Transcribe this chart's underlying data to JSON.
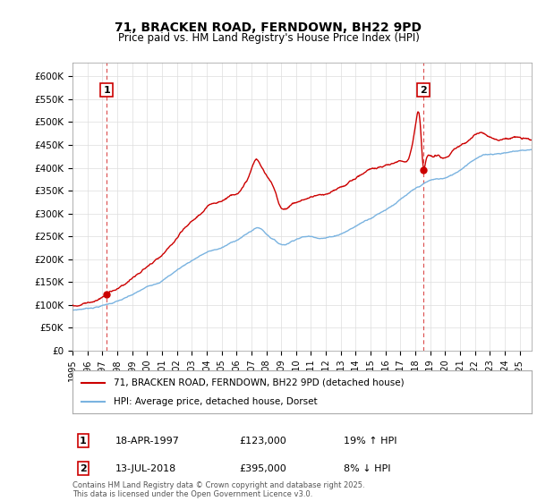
{
  "title1": "71, BRACKEN ROAD, FERNDOWN, BH22 9PD",
  "title2": "Price paid vs. HM Land Registry's House Price Index (HPI)",
  "xlim_start": 1995.0,
  "xlim_end": 2025.8,
  "ylim_min": 0,
  "ylim_max": 630000,
  "yticks": [
    0,
    50000,
    100000,
    150000,
    200000,
    250000,
    300000,
    350000,
    400000,
    450000,
    500000,
    550000,
    600000
  ],
  "ytick_labels": [
    "£0",
    "£50K",
    "£100K",
    "£150K",
    "£200K",
    "£250K",
    "£300K",
    "£350K",
    "£400K",
    "£450K",
    "£500K",
    "£550K",
    "£600K"
  ],
  "sale1_year": 1997.29,
  "sale1_price": 123000,
  "sale1_label": "1",
  "sale2_year": 2018.54,
  "sale2_price": 395000,
  "sale2_label": "2",
  "red_line_color": "#cc0000",
  "blue_line_color": "#7ab3e0",
  "vline_color": "#cc0000",
  "grid_color": "#dddddd",
  "legend_label_red": "71, BRACKEN ROAD, FERNDOWN, BH22 9PD (detached house)",
  "legend_label_blue": "HPI: Average price, detached house, Dorset",
  "table_row1": [
    "1",
    "18-APR-1997",
    "£123,000",
    "19% ↑ HPI"
  ],
  "table_row2": [
    "2",
    "13-JUL-2018",
    "£395,000",
    "8% ↓ HPI"
  ],
  "footer": "Contains HM Land Registry data © Crown copyright and database right 2025.\nThis data is licensed under the Open Government Licence v3.0.",
  "bg_color": "#ffffff",
  "hpi_base_points": [
    [
      1995.0,
      88000
    ],
    [
      1996.0,
      93000
    ],
    [
      1997.0,
      100000
    ],
    [
      1998.0,
      110000
    ],
    [
      1999.0,
      122000
    ],
    [
      2000.0,
      138000
    ],
    [
      2001.0,
      155000
    ],
    [
      2002.0,
      178000
    ],
    [
      2003.0,
      200000
    ],
    [
      2004.0,
      218000
    ],
    [
      2005.0,
      228000
    ],
    [
      2006.0,
      245000
    ],
    [
      2007.0,
      265000
    ],
    [
      2007.5,
      272000
    ],
    [
      2008.0,
      260000
    ],
    [
      2008.5,
      248000
    ],
    [
      2009.0,
      238000
    ],
    [
      2009.5,
      242000
    ],
    [
      2010.0,
      252000
    ],
    [
      2011.0,
      258000
    ],
    [
      2012.0,
      258000
    ],
    [
      2013.0,
      268000
    ],
    [
      2014.0,
      285000
    ],
    [
      2015.0,
      305000
    ],
    [
      2016.0,
      325000
    ],
    [
      2017.0,
      348000
    ],
    [
      2018.0,
      368000
    ],
    [
      2018.54,
      378000
    ],
    [
      2019.0,
      385000
    ],
    [
      2020.0,
      390000
    ],
    [
      2021.0,
      408000
    ],
    [
      2022.0,
      435000
    ],
    [
      2023.0,
      445000
    ],
    [
      2024.0,
      450000
    ],
    [
      2025.0,
      455000
    ],
    [
      2025.8,
      458000
    ]
  ],
  "prop_base_points": [
    [
      1995.0,
      100000
    ],
    [
      1995.5,
      101000
    ],
    [
      1996.0,
      108000
    ],
    [
      1996.5,
      113000
    ],
    [
      1997.0,
      118000
    ],
    [
      1997.29,
      123000
    ],
    [
      1997.5,
      128000
    ],
    [
      1998.0,
      138000
    ],
    [
      1998.5,
      148000
    ],
    [
      1999.0,
      162000
    ],
    [
      1999.5,
      172000
    ],
    [
      2000.0,
      185000
    ],
    [
      2000.5,
      195000
    ],
    [
      2001.0,
      205000
    ],
    [
      2001.5,
      220000
    ],
    [
      2002.0,
      238000
    ],
    [
      2002.5,
      255000
    ],
    [
      2003.0,
      270000
    ],
    [
      2003.5,
      285000
    ],
    [
      2004.0,
      298000
    ],
    [
      2004.5,
      310000
    ],
    [
      2005.0,
      318000
    ],
    [
      2005.5,
      328000
    ],
    [
      2006.0,
      340000
    ],
    [
      2006.5,
      355000
    ],
    [
      2007.0,
      390000
    ],
    [
      2007.3,
      410000
    ],
    [
      2007.6,
      400000
    ],
    [
      2008.0,
      375000
    ],
    [
      2008.5,
      345000
    ],
    [
      2009.0,
      305000
    ],
    [
      2009.5,
      310000
    ],
    [
      2010.0,
      318000
    ],
    [
      2010.5,
      325000
    ],
    [
      2011.0,
      330000
    ],
    [
      2011.5,
      335000
    ],
    [
      2012.0,
      332000
    ],
    [
      2012.5,
      338000
    ],
    [
      2013.0,
      345000
    ],
    [
      2013.5,
      355000
    ],
    [
      2014.0,
      368000
    ],
    [
      2014.5,
      378000
    ],
    [
      2015.0,
      388000
    ],
    [
      2015.5,
      392000
    ],
    [
      2016.0,
      395000
    ],
    [
      2016.5,
      400000
    ],
    [
      2017.0,
      408000
    ],
    [
      2017.5,
      415000
    ],
    [
      2018.0,
      490000
    ],
    [
      2018.3,
      505000
    ],
    [
      2018.54,
      395000
    ],
    [
      2018.7,
      410000
    ],
    [
      2019.0,
      420000
    ],
    [
      2019.5,
      418000
    ],
    [
      2020.0,
      415000
    ],
    [
      2020.5,
      425000
    ],
    [
      2021.0,
      435000
    ],
    [
      2021.5,
      445000
    ],
    [
      2022.0,
      458000
    ],
    [
      2022.5,
      465000
    ],
    [
      2023.0,
      460000
    ],
    [
      2023.5,
      455000
    ],
    [
      2024.0,
      458000
    ],
    [
      2024.5,
      462000
    ],
    [
      2025.0,
      460000
    ],
    [
      2025.8,
      455000
    ]
  ]
}
